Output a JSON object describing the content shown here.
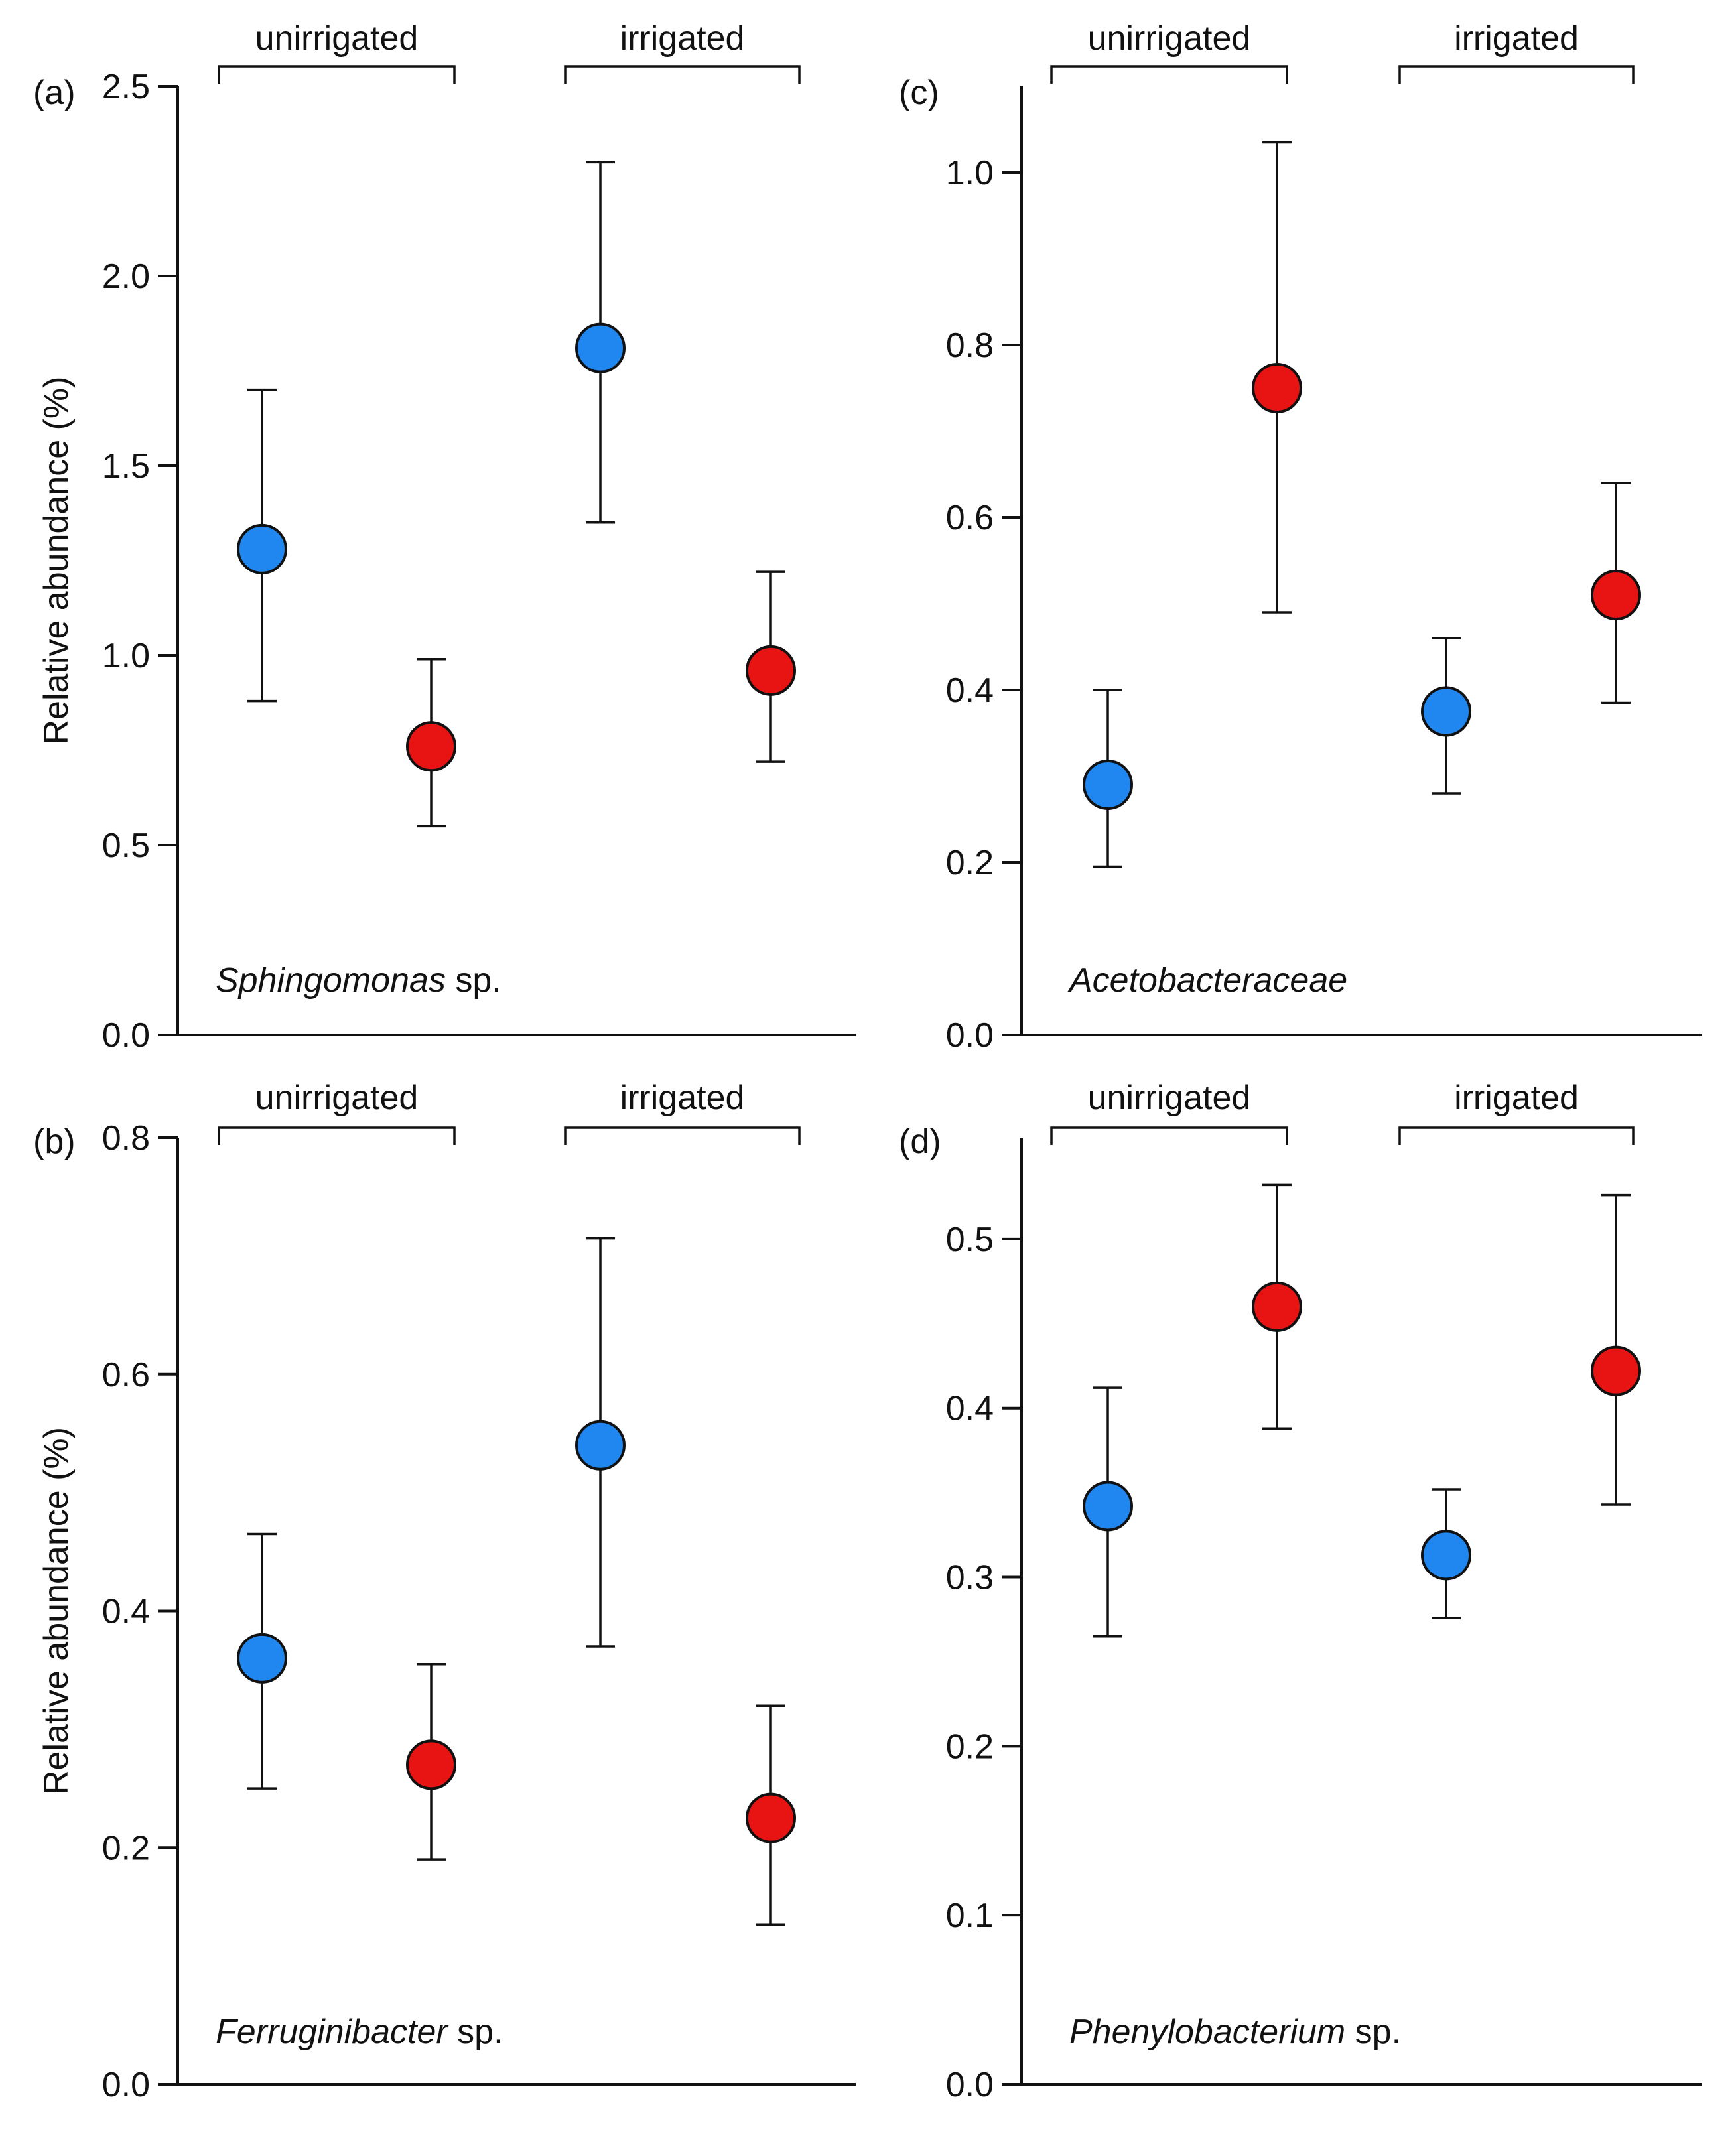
{
  "figure": {
    "ylabel": "Relative abundance (%)",
    "group_labels": [
      "unirrigated",
      "irrigated"
    ]
  },
  "colors": {
    "blue": "#1f87ef",
    "red": "#e81313",
    "axis": "#111111"
  },
  "chart_data": [
    {
      "panel": "(a)",
      "type": "scatter",
      "species_italic": "Sphingomonas",
      "species_suffix": " sp.",
      "ylim": [
        0,
        2.5
      ],
      "yticks": [
        0.0,
        0.5,
        1.0,
        1.5,
        2.0,
        2.5
      ],
      "ytick_labels": [
        "0.0",
        "0.5",
        "1.0",
        "1.5",
        "2.0",
        "2.5"
      ],
      "groups": [
        "unirrigated",
        "irrigated"
      ],
      "points": [
        {
          "group": "unirrigated",
          "color": "blue",
          "value": 1.28,
          "lower": 0.88,
          "upper": 1.7
        },
        {
          "group": "unirrigated",
          "color": "red",
          "value": 0.76,
          "lower": 0.55,
          "upper": 0.99
        },
        {
          "group": "irrigated",
          "color": "blue",
          "value": 1.81,
          "lower": 1.35,
          "upper": 2.3
        },
        {
          "group": "irrigated",
          "color": "red",
          "value": 0.96,
          "lower": 0.72,
          "upper": 1.22
        }
      ]
    },
    {
      "panel": "(b)",
      "type": "scatter",
      "species_italic": "Ferruginibacter",
      "species_suffix": " sp.",
      "ylim": [
        0,
        0.8
      ],
      "yticks": [
        0.0,
        0.2,
        0.4,
        0.6,
        0.8
      ],
      "ytick_labels": [
        "0.0",
        "0.2",
        "0.4",
        "0.6",
        "0.8"
      ],
      "groups": [
        "unirrigated",
        "irrigated"
      ],
      "points": [
        {
          "group": "unirrigated",
          "color": "blue",
          "value": 0.36,
          "lower": 0.25,
          "upper": 0.465
        },
        {
          "group": "unirrigated",
          "color": "red",
          "value": 0.27,
          "lower": 0.19,
          "upper": 0.355
        },
        {
          "group": "irrigated",
          "color": "blue",
          "value": 0.54,
          "lower": 0.37,
          "upper": 0.715
        },
        {
          "group": "irrigated",
          "color": "red",
          "value": 0.225,
          "lower": 0.135,
          "upper": 0.32
        }
      ]
    },
    {
      "panel": "(c)",
      "type": "scatter",
      "species_italic": "Acetobacteraceae",
      "species_suffix": "",
      "ylim": [
        0,
        1.1
      ],
      "yticks": [
        0.0,
        0.2,
        0.4,
        0.6,
        0.8,
        1.0
      ],
      "ytick_labels": [
        "0.0",
        "0.2",
        "0.4",
        "0.6",
        "0.8",
        "1.0"
      ],
      "groups": [
        "unirrigated",
        "irrigated"
      ],
      "points": [
        {
          "group": "unirrigated",
          "color": "blue",
          "value": 0.29,
          "lower": 0.195,
          "upper": 0.4
        },
        {
          "group": "unirrigated",
          "color": "red",
          "value": 0.75,
          "lower": 0.49,
          "upper": 1.035
        },
        {
          "group": "irrigated",
          "color": "blue",
          "value": 0.375,
          "lower": 0.28,
          "upper": 0.46
        },
        {
          "group": "irrigated",
          "color": "red",
          "value": 0.51,
          "lower": 0.385,
          "upper": 0.64
        }
      ]
    },
    {
      "panel": "(d)",
      "type": "scatter",
      "species_italic": "Phenylobacterium",
      "species_suffix": " sp.",
      "ylim": [
        0,
        0.56
      ],
      "yticks": [
        0.0,
        0.1,
        0.2,
        0.3,
        0.4,
        0.5
      ],
      "ytick_labels": [
        "0.0",
        "0.1",
        "0.2",
        "0.3",
        "0.4",
        "0.5"
      ],
      "groups": [
        "unirrigated",
        "irrigated"
      ],
      "points": [
        {
          "group": "unirrigated",
          "color": "blue",
          "value": 0.342,
          "lower": 0.265,
          "upper": 0.412
        },
        {
          "group": "unirrigated",
          "color": "red",
          "value": 0.46,
          "lower": 0.388,
          "upper": 0.532
        },
        {
          "group": "irrigated",
          "color": "blue",
          "value": 0.313,
          "lower": 0.276,
          "upper": 0.352
        },
        {
          "group": "irrigated",
          "color": "red",
          "value": 0.422,
          "lower": 0.343,
          "upper": 0.526
        }
      ]
    }
  ]
}
